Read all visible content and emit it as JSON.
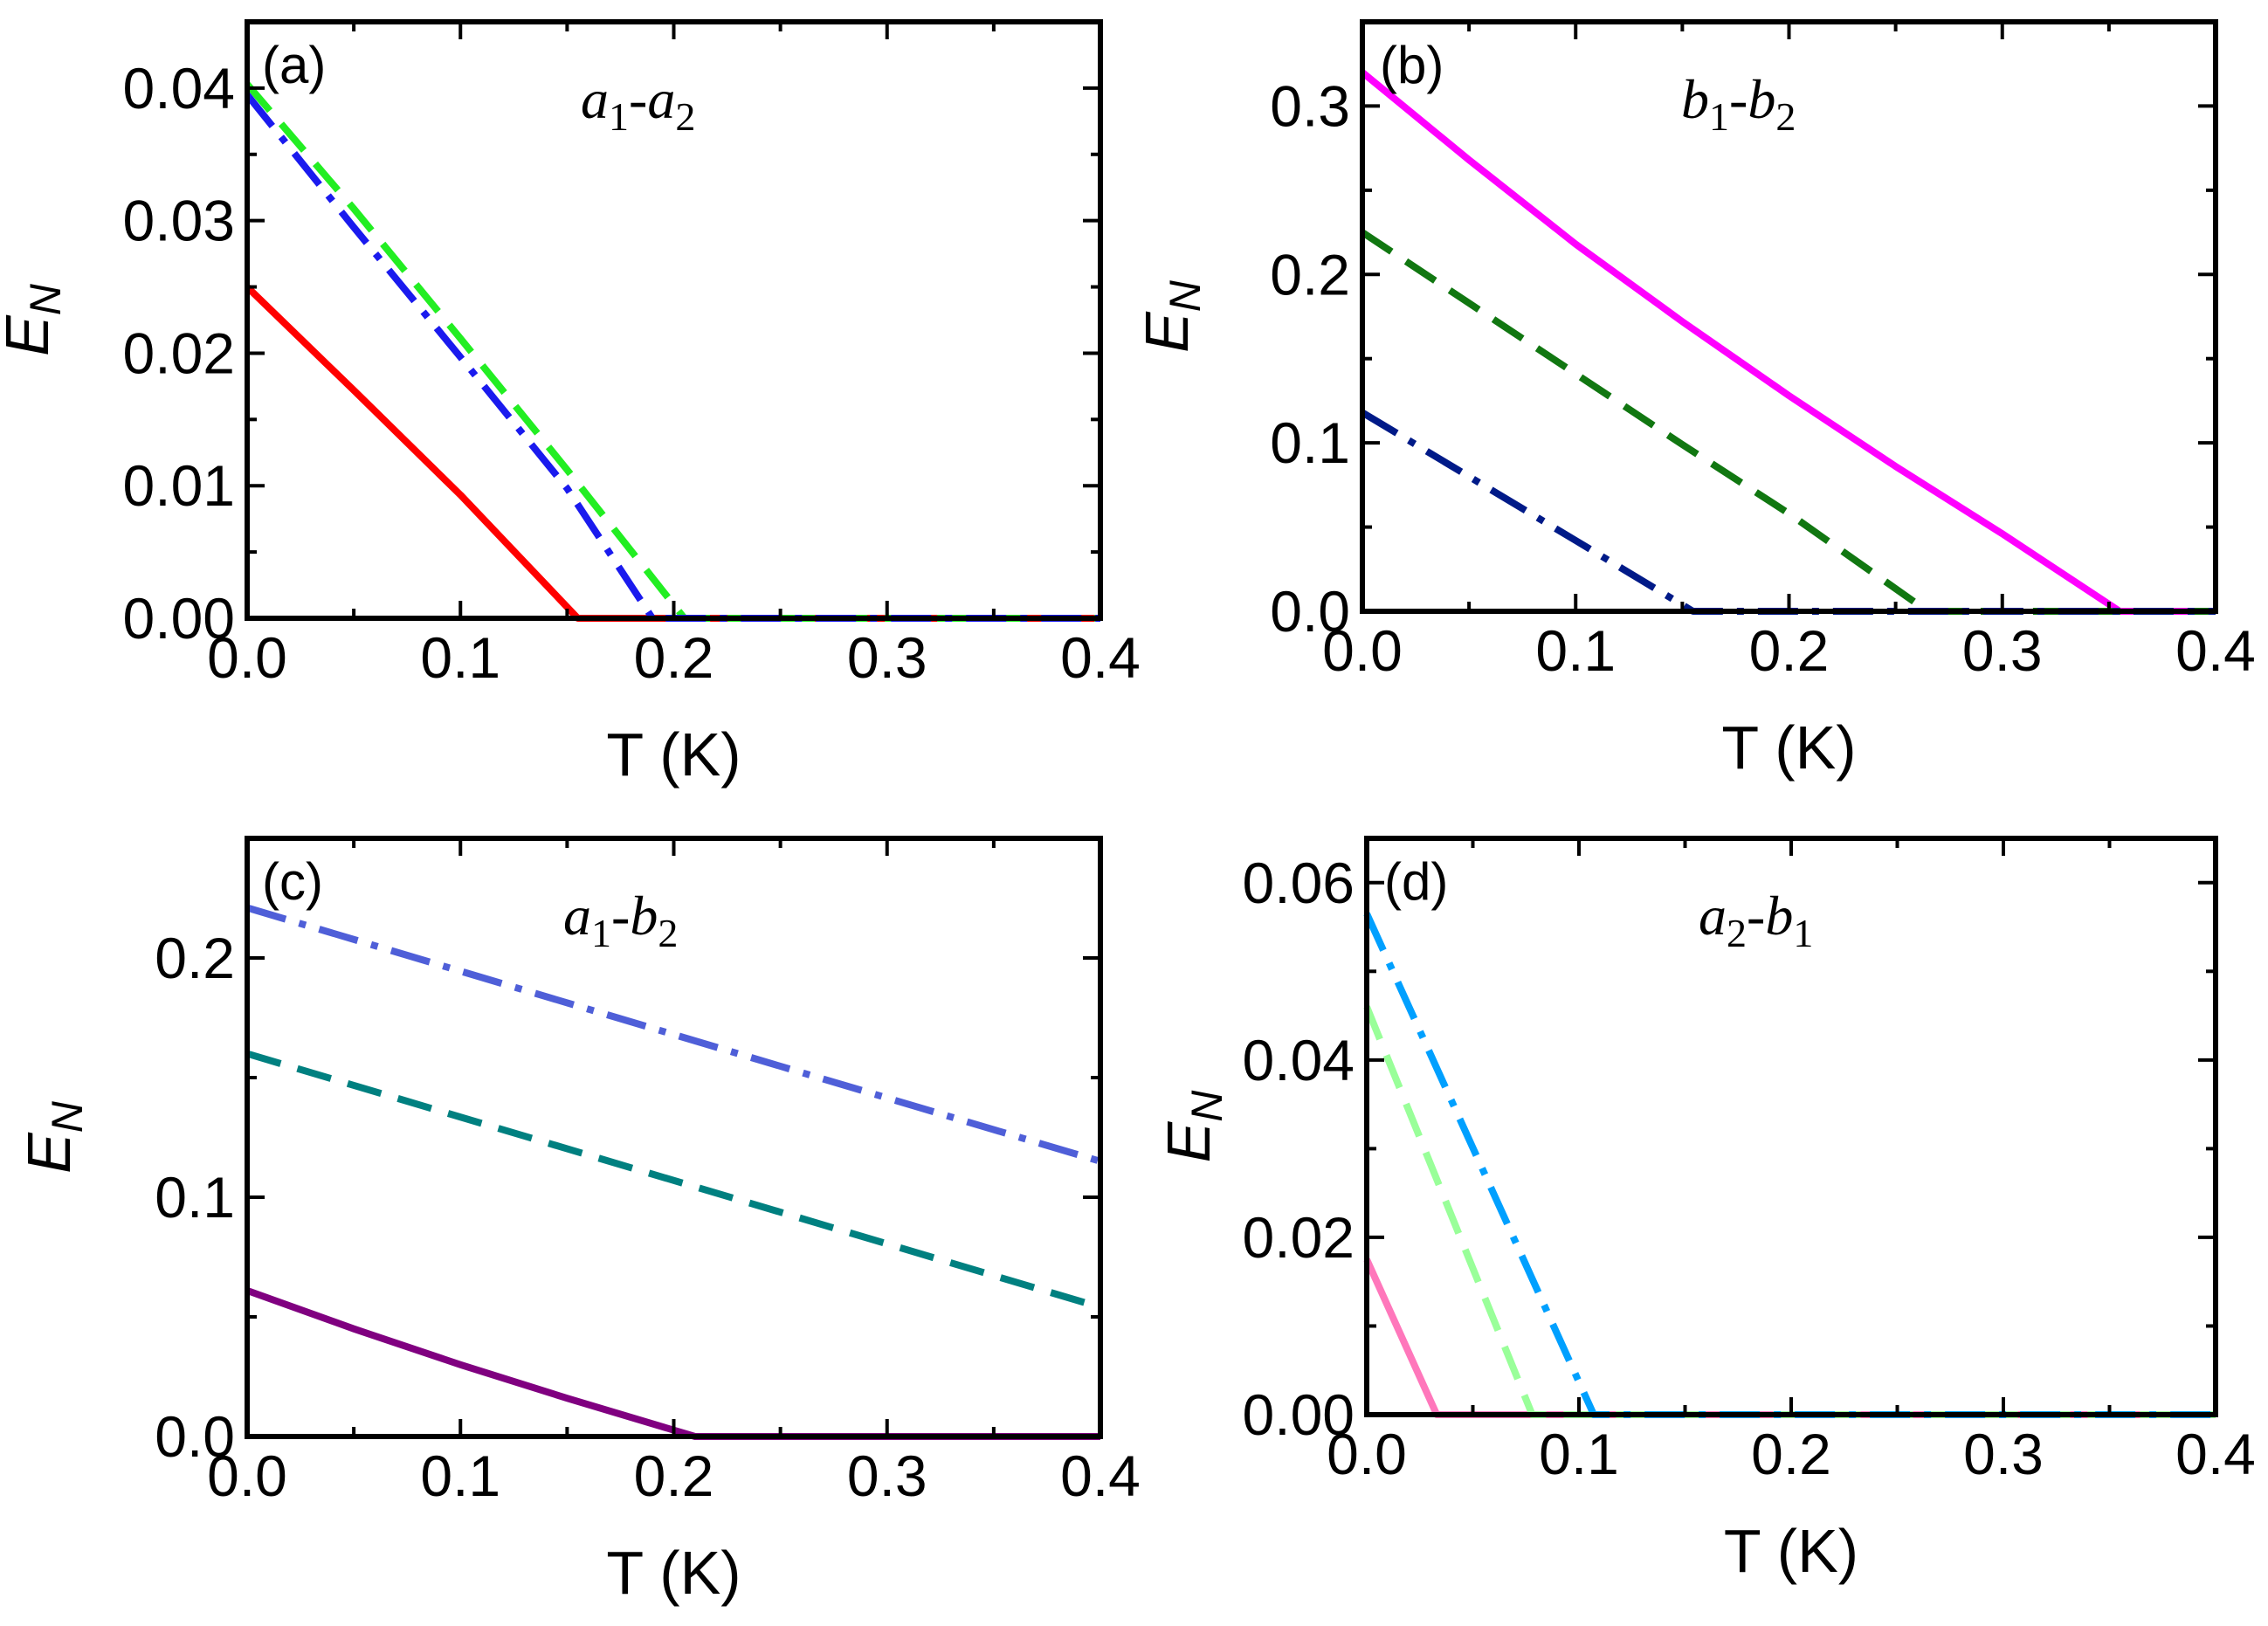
{
  "chart_data": [
    {
      "type": "line",
      "panel_label": "(a)",
      "annotation": {
        "v1": "a",
        "s1": "1",
        "sep": "-",
        "v2": "a",
        "s2": "2"
      },
      "xlabel": "T (K)",
      "ylabel": {
        "main": "E",
        "sub": "N"
      },
      "xlim": [
        0.0,
        0.4
      ],
      "ylim": [
        0.0,
        0.045
      ],
      "xticks": [
        0.0,
        0.1,
        0.2,
        0.3,
        0.4
      ],
      "xtick_labels": [
        "0.0",
        "0.1",
        "0.2",
        "0.3",
        "0.4"
      ],
      "yticks": [
        0.0,
        0.01,
        0.02,
        0.03,
        0.04
      ],
      "ytick_labels": [
        "0.00",
        "0.01",
        "0.02",
        "0.03",
        "0.04"
      ],
      "series": [
        {
          "name": "solid",
          "style": "solid",
          "color": "#ff0000",
          "x": [
            0.0,
            0.05,
            0.1,
            0.155,
            0.4
          ],
          "y": [
            0.025,
            0.0172,
            0.0093,
            0.0,
            0.0
          ]
        },
        {
          "name": "dash",
          "style": "dash",
          "color": "#22ee22",
          "x": [
            0.0,
            0.05,
            0.1,
            0.15,
            0.205,
            0.4
          ],
          "y": [
            0.0403,
            0.0309,
            0.0211,
            0.0112,
            0.0,
            0.0
          ]
        },
        {
          "name": "dashdot",
          "style": "dashdot",
          "color": "#1a1aee",
          "x": [
            0.0,
            0.05,
            0.1,
            0.15,
            0.19,
            0.4
          ],
          "y": [
            0.0395,
            0.0295,
            0.0197,
            0.0098,
            0.0,
            0.0
          ]
        }
      ]
    },
    {
      "type": "line",
      "panel_label": "(b)",
      "annotation": {
        "v1": "b",
        "s1": "1",
        "sep": "-",
        "v2": "b",
        "s2": "2"
      },
      "xlabel": "T (K)",
      "ylabel": {
        "main": "E",
        "sub": "N"
      },
      "xlim": [
        0.0,
        0.4
      ],
      "ylim": [
        0.0,
        0.35
      ],
      "xticks": [
        0.0,
        0.1,
        0.2,
        0.3,
        0.4
      ],
      "xtick_labels": [
        "0.0",
        "0.1",
        "0.2",
        "0.3",
        "0.4"
      ],
      "yticks": [
        0.0,
        0.1,
        0.2,
        0.3
      ],
      "ytick_labels": [
        "0.0",
        "0.1",
        "0.2",
        "0.3"
      ],
      "series": [
        {
          "name": "solid",
          "style": "solid",
          "color": "#ff00ff",
          "x": [
            0.0,
            0.05,
            0.1,
            0.15,
            0.2,
            0.25,
            0.3,
            0.355,
            0.4
          ],
          "y": [
            0.32,
            0.268,
            0.218,
            0.172,
            0.128,
            0.086,
            0.046,
            0.0,
            0.0
          ]
        },
        {
          "name": "dash",
          "style": "dash",
          "color": "#117711",
          "x": [
            0.0,
            0.05,
            0.1,
            0.15,
            0.2,
            0.265,
            0.4
          ],
          "y": [
            0.225,
            0.183,
            0.141,
            0.099,
            0.058,
            0.0,
            0.0
          ]
        },
        {
          "name": "dashdot",
          "style": "dashdot",
          "color": "#001a88",
          "x": [
            0.0,
            0.05,
            0.1,
            0.155,
            0.4
          ],
          "y": [
            0.118,
            0.08,
            0.042,
            0.0,
            0.0
          ]
        }
      ]
    },
    {
      "type": "line",
      "panel_label": "(c)",
      "annotation": {
        "v1": "a",
        "s1": "1",
        "sep": "-",
        "v2": "b",
        "s2": "2"
      },
      "xlabel": "T (K)",
      "ylabel": {
        "main": "E",
        "sub": "N"
      },
      "xlim": [
        0.0,
        0.4
      ],
      "ylim": [
        0.0,
        0.25
      ],
      "xticks": [
        0.0,
        0.1,
        0.2,
        0.3,
        0.4
      ],
      "xtick_labels": [
        "0.0",
        "0.1",
        "0.2",
        "0.3",
        "0.4"
      ],
      "yticks": [
        0.0,
        0.1,
        0.2
      ],
      "ytick_labels": [
        "0.0",
        "0.1",
        "0.2"
      ],
      "series": [
        {
          "name": "solid",
          "style": "solid",
          "color": "#800080",
          "x": [
            0.0,
            0.05,
            0.1,
            0.15,
            0.21,
            0.4
          ],
          "y": [
            0.061,
            0.045,
            0.03,
            0.016,
            0.0,
            0.0
          ]
        },
        {
          "name": "dash",
          "style": "dash",
          "color": "#008080",
          "x": [
            0.0,
            0.4
          ],
          "y": [
            0.16,
            0.054
          ]
        },
        {
          "name": "dashdot",
          "style": "dashdot",
          "color": "#4f5fd8",
          "x": [
            0.0,
            0.4
          ],
          "y": [
            0.221,
            0.115
          ]
        }
      ]
    },
    {
      "type": "line",
      "panel_label": "(d)",
      "annotation": {
        "v1": "a",
        "s1": "2",
        "sep": "-",
        "v2": "b",
        "s2": "1"
      },
      "xlabel": "T (K)",
      "ylabel": {
        "main": "E",
        "sub": "N"
      },
      "xlim": [
        0.0,
        0.4
      ],
      "ylim": [
        0.0,
        0.065
      ],
      "xticks": [
        0.0,
        0.1,
        0.2,
        0.3,
        0.4
      ],
      "xtick_labels": [
        "0.0",
        "0.1",
        "0.2",
        "0.3",
        "0.4"
      ],
      "yticks": [
        0.0,
        0.02,
        0.04,
        0.06
      ],
      "ytick_labels": [
        "0.00",
        "0.02",
        "0.04",
        "0.06"
      ],
      "series": [
        {
          "name": "solid",
          "style": "solid",
          "color": "#ff77bb",
          "x": [
            0.0,
            0.033,
            0.4
          ],
          "y": [
            0.0175,
            0.0,
            0.0
          ]
        },
        {
          "name": "dash",
          "style": "dash",
          "color": "#99ff99",
          "x": [
            0.0,
            0.078,
            0.4
          ],
          "y": [
            0.046,
            0.0,
            0.0
          ]
        },
        {
          "name": "dashdot",
          "style": "dashdot",
          "color": "#00a0ff",
          "x": [
            0.0,
            0.107,
            0.4
          ],
          "y": [
            0.0565,
            0.0,
            0.0
          ]
        }
      ]
    }
  ]
}
